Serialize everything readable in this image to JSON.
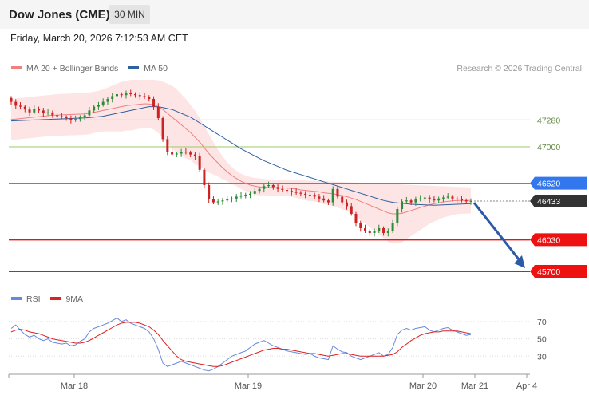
{
  "header": {
    "title": "Dow Jones (CME)",
    "timeframe": "30 MIN"
  },
  "timestamp": "Friday, March 20, 2026 7:12:53 AM CET",
  "credit": "Research © 2026 Trading Central",
  "colors": {
    "ma20": "#f08080",
    "ma50": "#3060a0",
    "bollinger": "#fde0e0",
    "up_candle": "#2e8b3a",
    "down_candle": "#cc2222",
    "resistance": "#99cc66",
    "support": "#ee1111",
    "pivot": "#3377ee",
    "current": "#333333",
    "rsi": "#6688dd",
    "rsi_ma": "#dd2222",
    "arrow": "#2a5aa8"
  },
  "chart_data": [
    {
      "type": "candlestick",
      "timeframe": "30 MIN",
      "legend": [
        {
          "name": "MA 20 + Bollinger Bands",
          "color": "#f08080"
        },
        {
          "name": "MA 50",
          "color": "#3060a0"
        }
      ],
      "x_ticks": [
        "Mar 18",
        "Mar 19",
        "Mar 20",
        "Mar 21",
        "Apr 4"
      ],
      "ylim": [
        45600,
        47700
      ],
      "levels": [
        {
          "label": "47280",
          "value": 47280,
          "kind": "resistance"
        },
        {
          "label": "47000",
          "value": 47000,
          "kind": "resistance"
        },
        {
          "label": "46620",
          "value": 46620,
          "kind": "pivot"
        },
        {
          "label": "46433",
          "value": 46433,
          "kind": "current"
        },
        {
          "label": "46030",
          "value": 46030,
          "kind": "support"
        },
        {
          "label": "45700",
          "value": 45700,
          "kind": "support"
        }
      ],
      "close": [
        47470,
        47430,
        47420,
        47390,
        47360,
        47400,
        47380,
        47350,
        47360,
        47330,
        47320,
        47310,
        47300,
        47280,
        47290,
        47310,
        47330,
        47380,
        47420,
        47440,
        47470,
        47500,
        47530,
        47550,
        47540,
        47560,
        47550,
        47540,
        47530,
        47520,
        47500,
        47420,
        47300,
        47080,
        46950,
        46920,
        46930,
        46950,
        46940,
        46920,
        46900,
        46760,
        46600,
        46450,
        46420,
        46430,
        46440,
        46450,
        46460,
        46480,
        46490,
        46500,
        46510,
        46540,
        46560,
        46590,
        46600,
        46580,
        46560,
        46550,
        46540,
        46530,
        46520,
        46510,
        46500,
        46500,
        46480,
        46460,
        46440,
        46420,
        46560,
        46480,
        46420,
        46380,
        46300,
        46200,
        46150,
        46120,
        46100,
        46120,
        46150,
        46100,
        46120,
        46200,
        46350,
        46430,
        46440,
        46420,
        46450,
        46460,
        46470,
        46450,
        46440,
        46460,
        46470,
        46480,
        46460,
        46450,
        46440,
        46430,
        46433
      ],
      "forecast_arrow": {
        "from": 46433,
        "to": 45700
      },
      "series": [
        {
          "name": "MA 20 + Bollinger Bands",
          "values": [
            47285,
            47290,
            47295,
            47300,
            47305,
            47310,
            47315,
            47320,
            47325,
            47330,
            47332,
            47334,
            47336,
            47338,
            47340,
            47342,
            47344,
            47350,
            47360,
            47370,
            47380,
            47390,
            47400,
            47410,
            47420,
            47430,
            47435,
            47440,
            47445,
            47450,
            47448,
            47440,
            47420,
            47390,
            47350,
            47310,
            47270,
            47230,
            47190,
            47150,
            47100,
            47050,
            46990,
            46930,
            46880,
            46830,
            46780,
            46740,
            46700,
            46670,
            46640,
            46620,
            46600,
            46590,
            46580,
            46580,
            46575,
            46575,
            46570,
            46570,
            46570,
            46565,
            46560,
            46550,
            46545,
            46540,
            46535,
            46530,
            46520,
            46515,
            46510,
            46500,
            46490,
            46480,
            46465,
            46450,
            46430,
            46410,
            46390,
            46370,
            46350,
            46330,
            46310,
            46300,
            46300,
            46305,
            46320,
            46335,
            46350,
            46365,
            46380,
            46395,
            46405,
            46415,
            46425,
            46430,
            46435,
            46440,
            46440,
            46440,
            46440
          ]
        },
        {
          "name": "MA 50",
          "values": [
            47270,
            47272,
            47274,
            47276,
            47278,
            47280,
            47282,
            47284,
            47286,
            47288,
            47290,
            47292,
            47294,
            47296,
            47298,
            47300,
            47302,
            47305,
            47310,
            47315,
            47320,
            47330,
            47340,
            47350,
            47360,
            47370,
            47380,
            47390,
            47400,
            47410,
            47420,
            47420,
            47418,
            47410,
            47400,
            47390,
            47370,
            47350,
            47330,
            47310,
            47280,
            47250,
            47220,
            47190,
            47160,
            47130,
            47100,
            47070,
            47040,
            47010,
            46980,
            46955,
            46930,
            46905,
            46880,
            46855,
            46835,
            46815,
            46795,
            46775,
            46755,
            46740,
            46725,
            46710,
            46695,
            46680,
            46665,
            46650,
            46635,
            46620,
            46605,
            46590,
            46575,
            46560,
            46545,
            46530,
            46515,
            46500,
            46485,
            46470,
            46455,
            46440,
            46430,
            46420,
            46415,
            46410,
            46405,
            46400,
            46398,
            46396,
            46394,
            46392,
            46390,
            46392,
            46394,
            46396,
            46398,
            46400,
            46402,
            46404,
            46406
          ]
        },
        {
          "name": "Bollinger upper",
          "values": [
            47500,
            47505,
            47510,
            47515,
            47520,
            47525,
            47530,
            47535,
            47540,
            47545,
            47550,
            47552,
            47554,
            47556,
            47558,
            47560,
            47562,
            47568,
            47575,
            47585,
            47600,
            47620,
            47640,
            47660,
            47680,
            47690,
            47700,
            47700,
            47700,
            47700,
            47700,
            47700,
            47695,
            47680,
            47660,
            47640,
            47600,
            47550,
            47500,
            47440,
            47380,
            47300,
            47220,
            47130,
            47050,
            46970,
            46900,
            46840,
            46790,
            46750,
            46720,
            46700,
            46685,
            46675,
            46670,
            46665,
            46660,
            46658,
            46656,
            46655,
            46655,
            46654,
            46652,
            46650,
            46648,
            46646,
            46644,
            46642,
            46640,
            46638,
            46636,
            46634,
            46632,
            46630,
            46628,
            46626,
            46624,
            46622,
            46620,
            46618,
            46616,
            46614,
            46612,
            46610,
            46608,
            46606,
            46604,
            46602,
            46600,
            46598,
            46596,
            46594,
            46592,
            46590,
            46588,
            46586,
            46584,
            46582,
            46580,
            46578,
            46576
          ]
        },
        {
          "name": "Bollinger lower",
          "values": [
            47070,
            47075,
            47080,
            47085,
            47090,
            47095,
            47100,
            47105,
            47110,
            47115,
            47114,
            47116,
            47118,
            47120,
            47122,
            47124,
            47126,
            47132,
            47145,
            47155,
            47160,
            47160,
            47160,
            47160,
            47160,
            47170,
            47170,
            47180,
            47190,
            47200,
            47196,
            47180,
            47145,
            47100,
            47040,
            46980,
            46940,
            46910,
            46880,
            46860,
            46820,
            46800,
            46760,
            46730,
            46710,
            46690,
            46660,
            46640,
            46610,
            46590,
            46560,
            46540,
            46515,
            46505,
            46490,
            46495,
            46490,
            46492,
            46484,
            46485,
            46485,
            46476,
            46468,
            46450,
            46442,
            46434,
            46426,
            46418,
            46400,
            46392,
            46384,
            46366,
            46348,
            46330,
            46302,
            46274,
            46236,
            46198,
            46160,
            46122,
            46084,
            46046,
            46008,
            45990,
            45992,
            46004,
            46036,
            46068,
            46100,
            46132,
            46164,
            46196,
            46218,
            46240,
            46262,
            46274,
            46286,
            46298,
            46300,
            46302,
            46304
          ]
        }
      ]
    },
    {
      "type": "line",
      "legend": [
        {
          "name": "RSI",
          "color": "#6688dd"
        },
        {
          "name": "9MA",
          "color": "#dd2222"
        }
      ],
      "y_ticks": [
        "70",
        "50",
        "30"
      ],
      "ylim": [
        10,
        80
      ],
      "series": [
        {
          "name": "RSI",
          "values": [
            62,
            66,
            60,
            55,
            52,
            54,
            50,
            48,
            50,
            46,
            45,
            44,
            45,
            42,
            43,
            47,
            50,
            58,
            62,
            64,
            66,
            68,
            71,
            74,
            70,
            72,
            68,
            66,
            64,
            62,
            58,
            50,
            38,
            22,
            18,
            20,
            22,
            24,
            22,
            20,
            18,
            16,
            14,
            13,
            15,
            18,
            22,
            26,
            30,
            32,
            34,
            36,
            40,
            44,
            46,
            48,
            45,
            42,
            40,
            38,
            36,
            35,
            34,
            33,
            32,
            33,
            30,
            28,
            27,
            26,
            42,
            38,
            35,
            34,
            30,
            28,
            26,
            28,
            30,
            32,
            34,
            30,
            32,
            40,
            55,
            60,
            62,
            60,
            62,
            63,
            64,
            60,
            58,
            60,
            62,
            63,
            60,
            58,
            56,
            54,
            55
          ]
        },
        {
          "name": "9MA",
          "values": [
            58,
            60,
            61,
            60,
            58,
            57,
            56,
            54,
            52,
            50,
            49,
            48,
            47,
            46,
            45,
            45,
            46,
            48,
            51,
            54,
            57,
            60,
            63,
            66,
            68,
            69,
            69,
            69,
            68,
            66,
            64,
            60,
            55,
            48,
            42,
            36,
            30,
            26,
            24,
            23,
            22,
            21,
            20,
            19,
            18,
            18,
            19,
            21,
            23,
            25,
            27,
            29,
            31,
            33,
            35,
            37,
            38,
            39,
            39,
            38,
            38,
            37,
            36,
            35,
            34,
            33,
            33,
            32,
            31,
            30,
            31,
            32,
            33,
            33,
            32,
            31,
            30,
            30,
            30,
            30,
            30,
            30,
            31,
            32,
            35,
            40,
            44,
            48,
            51,
            54,
            56,
            57,
            58,
            58,
            59,
            59,
            59,
            59,
            58,
            57,
            56
          ]
        }
      ]
    }
  ]
}
